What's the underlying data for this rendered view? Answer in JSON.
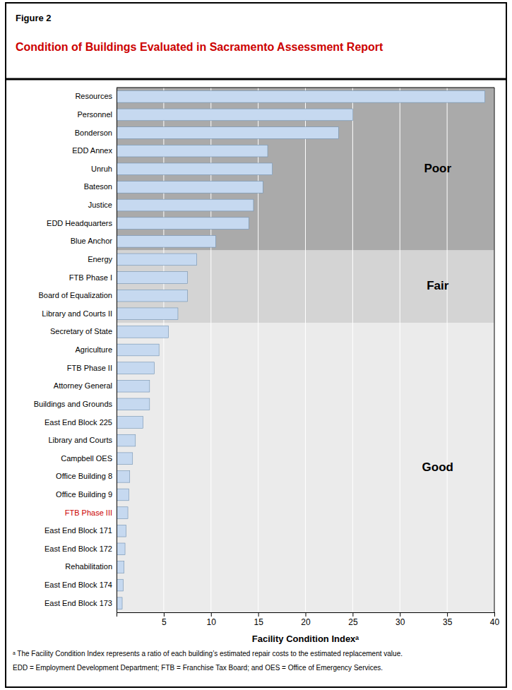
{
  "chart_data": {
    "type": "bar",
    "orientation": "horizontal",
    "subtitle": "Figure 2",
    "title": "Condition of Buildings Evaluated in Sacramento Assessment Report",
    "x_label": "Facility Condition Indexᵃ",
    "footnotes": [
      "ᵃ The Facility Condition Index represents a ratio of each building’s estimated repair costs to the estimated replacement value.",
      "EDD = Employment Development Department; FTB = Franchise Tax Board; and OES = Office of Emergency Services."
    ],
    "categories": [
      "Resources",
      "Personnel",
      "Bonderson",
      "EDD Annex",
      "Unruh",
      "Bateson",
      "Justice",
      "EDD Headquarters",
      "Blue Anchor",
      "Energy",
      "FTB Phase I",
      "Board of Equalization",
      "Library and Courts II",
      "Secretary of State",
      "Agriculture",
      "FTB Phase II",
      "Attorney General",
      "Buildings and Grounds",
      "East End Block 225",
      "Library and Courts",
      "Campbell OES",
      "Office Building 8",
      "Office Building 9",
      "FTB Phase III",
      "East End Block 171",
      "East End Block 172",
      "Rehabilitation",
      "East End Block 174",
      "East End Block 173"
    ],
    "values": [
      39.0,
      25.0,
      23.5,
      16.0,
      16.5,
      15.5,
      14.5,
      14.0,
      10.5,
      8.5,
      7.5,
      7.5,
      6.5,
      5.5,
      4.5,
      4.0,
      3.5,
      3.5,
      2.8,
      2.0,
      1.7,
      1.4,
      1.3,
      1.2,
      1.0,
      0.9,
      0.8,
      0.7,
      0.6
    ],
    "color": "#c6d9f0",
    "xlim": [
      0,
      40
    ],
    "xticks": [
      5,
      10,
      15,
      20,
      25,
      30,
      35,
      40
    ],
    "grid": true,
    "zones": [
      {
        "name": "Poor",
        "color": "#aaaaaa",
        "from": "Resources",
        "to": "Blue Anchor"
      },
      {
        "name": "Fair",
        "color": "#d4d4d4",
        "from": "Energy",
        "to": "Library and Courts II"
      },
      {
        "name": "Good",
        "color": "#ebebeb",
        "from": "Secretary of State",
        "to": "East End Block 173"
      }
    ],
    "highlight_categories": [
      "FTB Phase III"
    ]
  }
}
